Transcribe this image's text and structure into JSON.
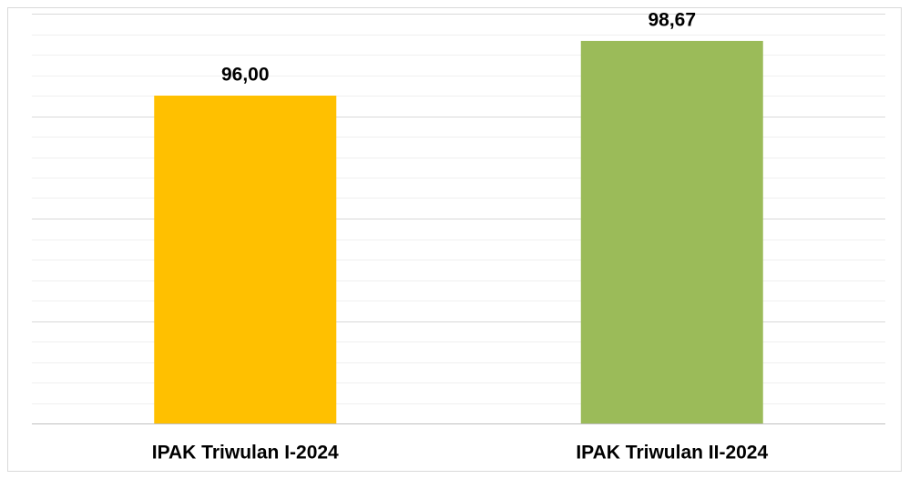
{
  "chart_data": {
    "type": "bar",
    "categories": [
      "IPAK Triwulan I-2024",
      "IPAK Triwulan II-2024"
    ],
    "values": [
      96.0,
      98.67
    ],
    "value_labels": [
      "96,00",
      "98,67"
    ],
    "colors": [
      "#ffc000",
      "#9bbb59"
    ],
    "ylim": [
      80,
      100
    ],
    "yticks": [
      80,
      85,
      90,
      95,
      100
    ],
    "minor_yticks": [
      81,
      82,
      83,
      84,
      86,
      87,
      88,
      89,
      91,
      92,
      93,
      94,
      96,
      97,
      98,
      99
    ],
    "grid": true
  }
}
